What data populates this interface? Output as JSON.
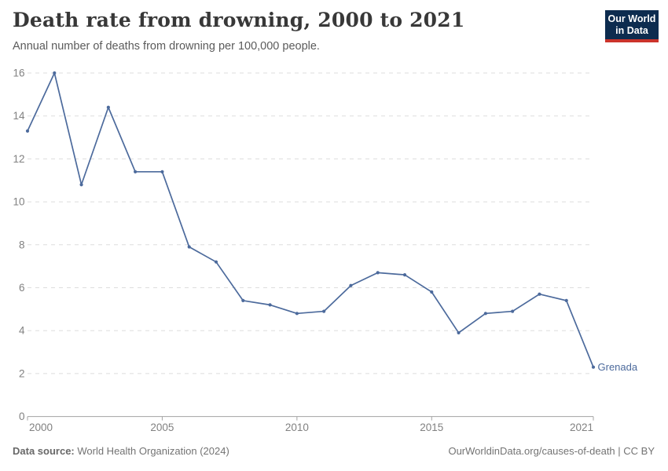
{
  "header": {
    "title": "Death rate from drowning, 2000 to 2021",
    "subtitle": "Annual number of deaths from drowning per 100,000 people."
  },
  "logo": {
    "line1": "Our World",
    "line2": "in Data",
    "bg_color": "#0D2C4F",
    "bar_color": "#CB342B"
  },
  "chart_data": {
    "type": "line",
    "title": "Death rate from drowning, 2000 to 2021",
    "ylabel": "",
    "xlabel": "",
    "xlim": [
      2000,
      2021
    ],
    "ylim": [
      0,
      16
    ],
    "xticks": [
      2000,
      2005,
      2010,
      2015,
      2021
    ],
    "yticks": [
      0,
      2,
      4,
      6,
      8,
      10,
      12,
      14,
      16
    ],
    "grid": true,
    "gridline_color": "#dddddd",
    "axis_color": "#a3a3a3",
    "tick_label_color": "#818181",
    "series": [
      {
        "name": "Grenada",
        "color": "#4C6A9C",
        "x": [
          2000,
          2001,
          2002,
          2003,
          2004,
          2005,
          2006,
          2007,
          2008,
          2009,
          2010,
          2011,
          2012,
          2013,
          2014,
          2015,
          2016,
          2017,
          2018,
          2019,
          2020,
          2021
        ],
        "values": [
          13.3,
          16.0,
          10.8,
          14.4,
          11.4,
          11.4,
          7.9,
          7.2,
          5.4,
          5.2,
          4.8,
          4.9,
          6.1,
          6.7,
          6.6,
          5.8,
          3.9,
          4.8,
          4.9,
          5.7,
          5.4,
          2.3
        ]
      }
    ],
    "end_label": "Grenada",
    "legend_position": "end-of-line"
  },
  "footer": {
    "source_label": "Data source:",
    "source": " World Health Organization (2024)",
    "rights": "OurWorldinData.org/causes-of-death | CC BY"
  }
}
